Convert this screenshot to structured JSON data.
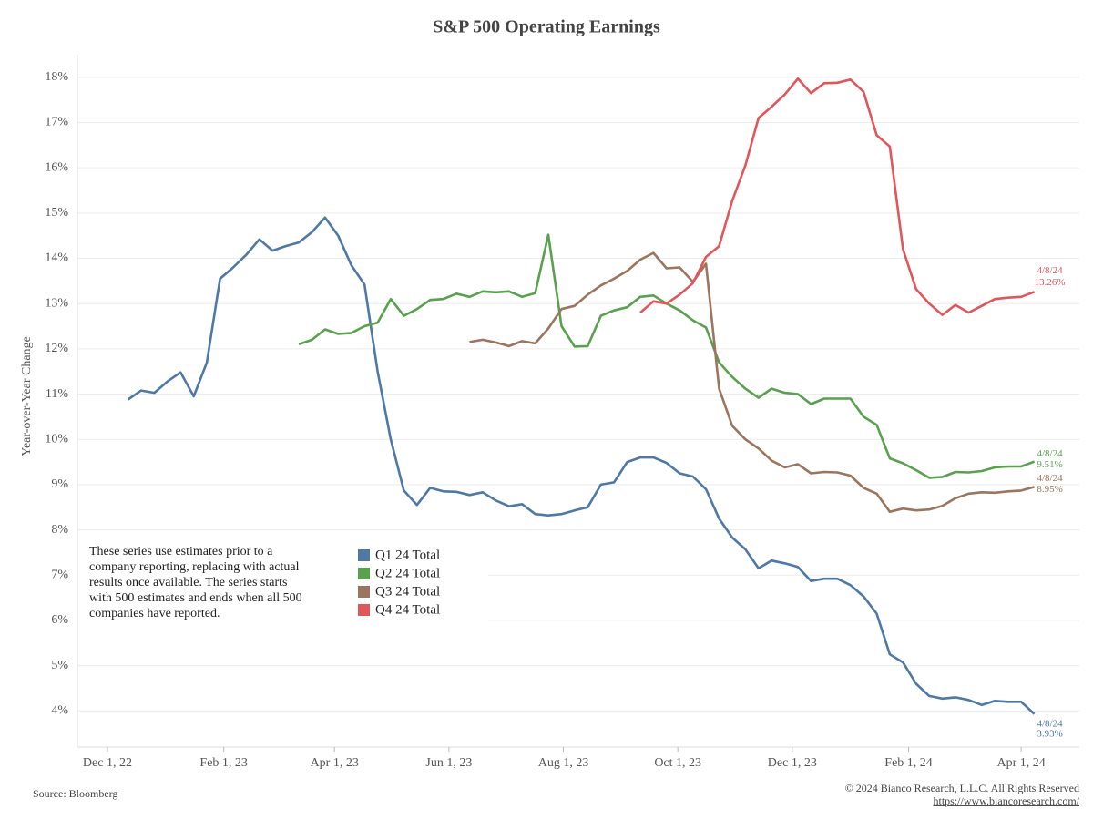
{
  "chart_data": {
    "type": "line",
    "title": "S&P 500 Operating Earnings",
    "y_label": "Year-over-Year Change",
    "note": [
      "These series use estimates prior to a",
      "company reporting, replacing with actual",
      "results once available. The series starts",
      "with 500 estimates and ends when all 500",
      "companies have reported."
    ],
    "source": "Source: Bloomberg",
    "copyright": "© 2024 Bianco Research, L.L.C. All Rights Reserved",
    "url": "https://www.biancoresearch.com/",
    "x": [
      "2022-12-12",
      "2022-12-19",
      "2022-12-26",
      "2023-01-02",
      "2023-01-09",
      "2023-01-16",
      "2023-01-23",
      "2023-01-30",
      "2023-02-06",
      "2023-02-13",
      "2023-02-20",
      "2023-02-27",
      "2023-03-06",
      "2023-03-13",
      "2023-03-20",
      "2023-03-27",
      "2023-04-03",
      "2023-04-10",
      "2023-04-17",
      "2023-04-24",
      "2023-05-01",
      "2023-05-08",
      "2023-05-15",
      "2023-05-22",
      "2023-05-29",
      "2023-06-05",
      "2023-06-12",
      "2023-06-19",
      "2023-06-26",
      "2023-07-03",
      "2023-07-10",
      "2023-07-17",
      "2023-07-24",
      "2023-07-31",
      "2023-08-07",
      "2023-08-14",
      "2023-08-21",
      "2023-08-28",
      "2023-09-04",
      "2023-09-11",
      "2023-09-18",
      "2023-09-25",
      "2023-10-02",
      "2023-10-09",
      "2023-10-16",
      "2023-10-23",
      "2023-10-30",
      "2023-11-06",
      "2023-11-13",
      "2023-11-20",
      "2023-11-27",
      "2023-12-04",
      "2023-12-11",
      "2023-12-18",
      "2023-12-25",
      "2024-01-01",
      "2024-01-08",
      "2024-01-15",
      "2024-01-22",
      "2024-01-29",
      "2024-02-05",
      "2024-02-12",
      "2024-02-19",
      "2024-02-26",
      "2024-03-04",
      "2024-03-11",
      "2024-03-18",
      "2024-03-25",
      "2024-04-01",
      "2024-04-08"
    ],
    "xlim": [
      "2022-11-15",
      "2024-05-02"
    ],
    "xticks": [
      {
        "value": "2022-12-01",
        "label": "Dec 1, 22"
      },
      {
        "value": "2023-02-01",
        "label": "Feb 1, 23"
      },
      {
        "value": "2023-04-01",
        "label": "Apr 1, 23"
      },
      {
        "value": "2023-06-01",
        "label": "Jun 1, 23"
      },
      {
        "value": "2023-08-01",
        "label": "Aug 1, 23"
      },
      {
        "value": "2023-10-01",
        "label": "Oct 1, 23"
      },
      {
        "value": "2023-12-01",
        "label": "Dec 1, 23"
      },
      {
        "value": "2024-02-01",
        "label": "Feb 1, 24"
      },
      {
        "value": "2024-04-01",
        "label": "Apr 1, 24"
      }
    ],
    "ylim": [
      3.2,
      18.5
    ],
    "yticks": [
      {
        "value": 4,
        "label": "4%"
      },
      {
        "value": 5,
        "label": "5%"
      },
      {
        "value": 6,
        "label": "6%"
      },
      {
        "value": 7,
        "label": "7%"
      },
      {
        "value": 8,
        "label": "8%"
      },
      {
        "value": 9,
        "label": "9%"
      },
      {
        "value": 10,
        "label": "10%"
      },
      {
        "value": 11,
        "label": "11%"
      },
      {
        "value": 12,
        "label": "12%"
      },
      {
        "value": 13,
        "label": "13%"
      },
      {
        "value": 14,
        "label": "14%"
      },
      {
        "value": 15,
        "label": "15%"
      },
      {
        "value": 16,
        "label": "16%"
      },
      {
        "value": 17,
        "label": "17%"
      },
      {
        "value": 18,
        "label": "18%"
      }
    ],
    "grid": true,
    "series": [
      {
        "name": "Q1 24 Total",
        "color": "#4e79a7",
        "end_label": [
          "4/8/24",
          "3.93%"
        ],
        "values": [
          10.88,
          11.08,
          11.03,
          11.28,
          11.48,
          10.95,
          11.7,
          13.55,
          13.8,
          14.08,
          14.42,
          14.17,
          14.27,
          14.35,
          14.58,
          14.9,
          14.5,
          13.85,
          13.42,
          11.5,
          10.0,
          8.87,
          8.55,
          8.93,
          8.85,
          8.84,
          8.77,
          8.83,
          8.65,
          8.52,
          8.57,
          8.35,
          8.32,
          8.35,
          8.43,
          8.5,
          9.0,
          9.05,
          9.5,
          9.6,
          9.6,
          9.48,
          9.25,
          9.18,
          8.9,
          8.25,
          7.83,
          7.57,
          7.15,
          7.32,
          7.26,
          7.18,
          6.87,
          6.92,
          6.92,
          6.78,
          6.53,
          6.15,
          5.25,
          5.07,
          4.6,
          4.33,
          4.27,
          4.3,
          4.24,
          4.13,
          4.22,
          4.2,
          4.2,
          3.93
        ]
      },
      {
        "name": "Q2 24 Total",
        "color": "#59a14f",
        "end_label": [
          "4/8/24",
          "9.51%"
        ],
        "values": [
          null,
          null,
          null,
          null,
          null,
          null,
          null,
          null,
          null,
          null,
          null,
          null,
          null,
          12.1,
          12.2,
          12.43,
          12.33,
          12.35,
          12.5,
          12.58,
          13.1,
          12.73,
          12.88,
          13.08,
          13.1,
          13.22,
          13.15,
          13.27,
          13.25,
          13.27,
          13.15,
          13.23,
          14.52,
          12.5,
          12.05,
          12.06,
          12.73,
          12.85,
          12.92,
          13.15,
          13.18,
          13.0,
          12.85,
          12.63,
          12.47,
          11.7,
          11.38,
          11.12,
          10.92,
          11.12,
          11.03,
          11.0,
          10.78,
          10.9,
          10.9,
          10.9,
          10.5,
          10.32,
          9.58,
          9.47,
          9.32,
          9.15,
          9.17,
          9.28,
          9.27,
          9.3,
          9.38,
          9.4,
          9.4,
          9.51
        ]
      },
      {
        "name": "Q3 24 Total",
        "color": "#9c755f",
        "end_label": [
          "4/8/24",
          "8.95%"
        ],
        "values": [
          null,
          null,
          null,
          null,
          null,
          null,
          null,
          null,
          null,
          null,
          null,
          null,
          null,
          null,
          null,
          null,
          null,
          null,
          null,
          null,
          null,
          null,
          null,
          null,
          null,
          null,
          12.15,
          12.2,
          12.14,
          12.06,
          12.17,
          12.12,
          12.45,
          12.88,
          12.95,
          13.2,
          13.4,
          13.55,
          13.72,
          13.97,
          14.12,
          13.78,
          13.8,
          13.48,
          13.88,
          11.12,
          10.3,
          10.0,
          9.8,
          9.53,
          9.38,
          9.45,
          9.25,
          9.28,
          9.27,
          9.2,
          8.93,
          8.8,
          8.4,
          8.47,
          8.43,
          8.45,
          8.53,
          8.7,
          8.8,
          8.83,
          8.82,
          8.85,
          8.87,
          8.95
        ]
      },
      {
        "name": "Q4 24 Total",
        "color": "#e15759",
        "end_label": [
          "4/8/24",
          "13.26%"
        ],
        "values": [
          null,
          null,
          null,
          null,
          null,
          null,
          null,
          null,
          null,
          null,
          null,
          null,
          null,
          null,
          null,
          null,
          null,
          null,
          null,
          null,
          null,
          null,
          null,
          null,
          null,
          null,
          null,
          null,
          null,
          null,
          null,
          null,
          null,
          null,
          null,
          null,
          null,
          null,
          null,
          12.8,
          13.05,
          13.0,
          13.2,
          13.45,
          14.03,
          14.27,
          15.27,
          16.05,
          17.1,
          17.35,
          17.62,
          17.97,
          17.65,
          17.87,
          17.88,
          17.95,
          17.68,
          16.72,
          16.47,
          14.2,
          13.32,
          13.0,
          12.75,
          12.97,
          12.8,
          12.95,
          13.1,
          13.13,
          13.15,
          13.26
        ]
      }
    ]
  }
}
